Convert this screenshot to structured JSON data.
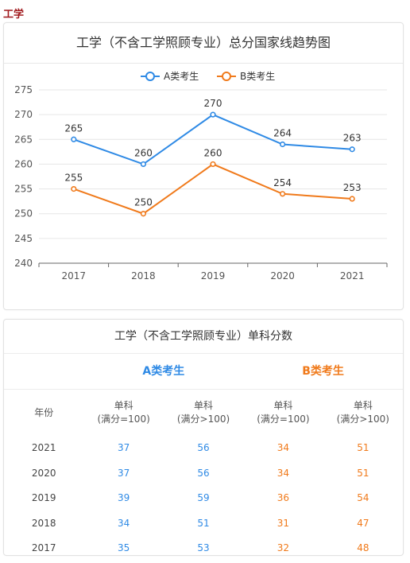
{
  "page_tag": "工学",
  "chart": {
    "title": "工学（不含工学照顾专业）总分国家线趋势图"
  },
  "chart_data": {
    "type": "line",
    "title": "工学（不含工学照顾专业）总分国家线趋势图",
    "categories": [
      "2017",
      "2018",
      "2019",
      "2020",
      "2021"
    ],
    "series": [
      {
        "name": "A类考生",
        "values": [
          265,
          260,
          270,
          264,
          263
        ],
        "color": "#2f8ae5"
      },
      {
        "name": "B类考生",
        "values": [
          255,
          250,
          260,
          254,
          253
        ],
        "color": "#f07a1b"
      }
    ],
    "ylim": [
      240,
      275
    ],
    "yticks": [
      240,
      245,
      250,
      255,
      260,
      265,
      270,
      275
    ],
    "grid": true,
    "legend": "top-center",
    "data_labels": true
  },
  "table": {
    "title": "工学（不含工学照顾专业）单科分数",
    "group_a": "A类考生",
    "group_b": "B类考生",
    "headers": {
      "year": "年份",
      "c1_l1": "单科",
      "c1_l2": "(满分=100)",
      "c2_l1": "单科",
      "c2_l2": "(满分>100)",
      "c3_l1": "单科",
      "c3_l2": "(满分=100)",
      "c4_l1": "单科",
      "c4_l2": "(满分>100)"
    },
    "rows": [
      {
        "year": "2021",
        "a1": "37",
        "a2": "56",
        "b1": "34",
        "b2": "51"
      },
      {
        "year": "2020",
        "a1": "37",
        "a2": "56",
        "b1": "34",
        "b2": "51"
      },
      {
        "year": "2019",
        "a1": "39",
        "a2": "59",
        "b1": "36",
        "b2": "54"
      },
      {
        "year": "2018",
        "a1": "34",
        "a2": "51",
        "b1": "31",
        "b2": "47"
      },
      {
        "year": "2017",
        "a1": "35",
        "a2": "53",
        "b1": "32",
        "b2": "48"
      }
    ]
  }
}
